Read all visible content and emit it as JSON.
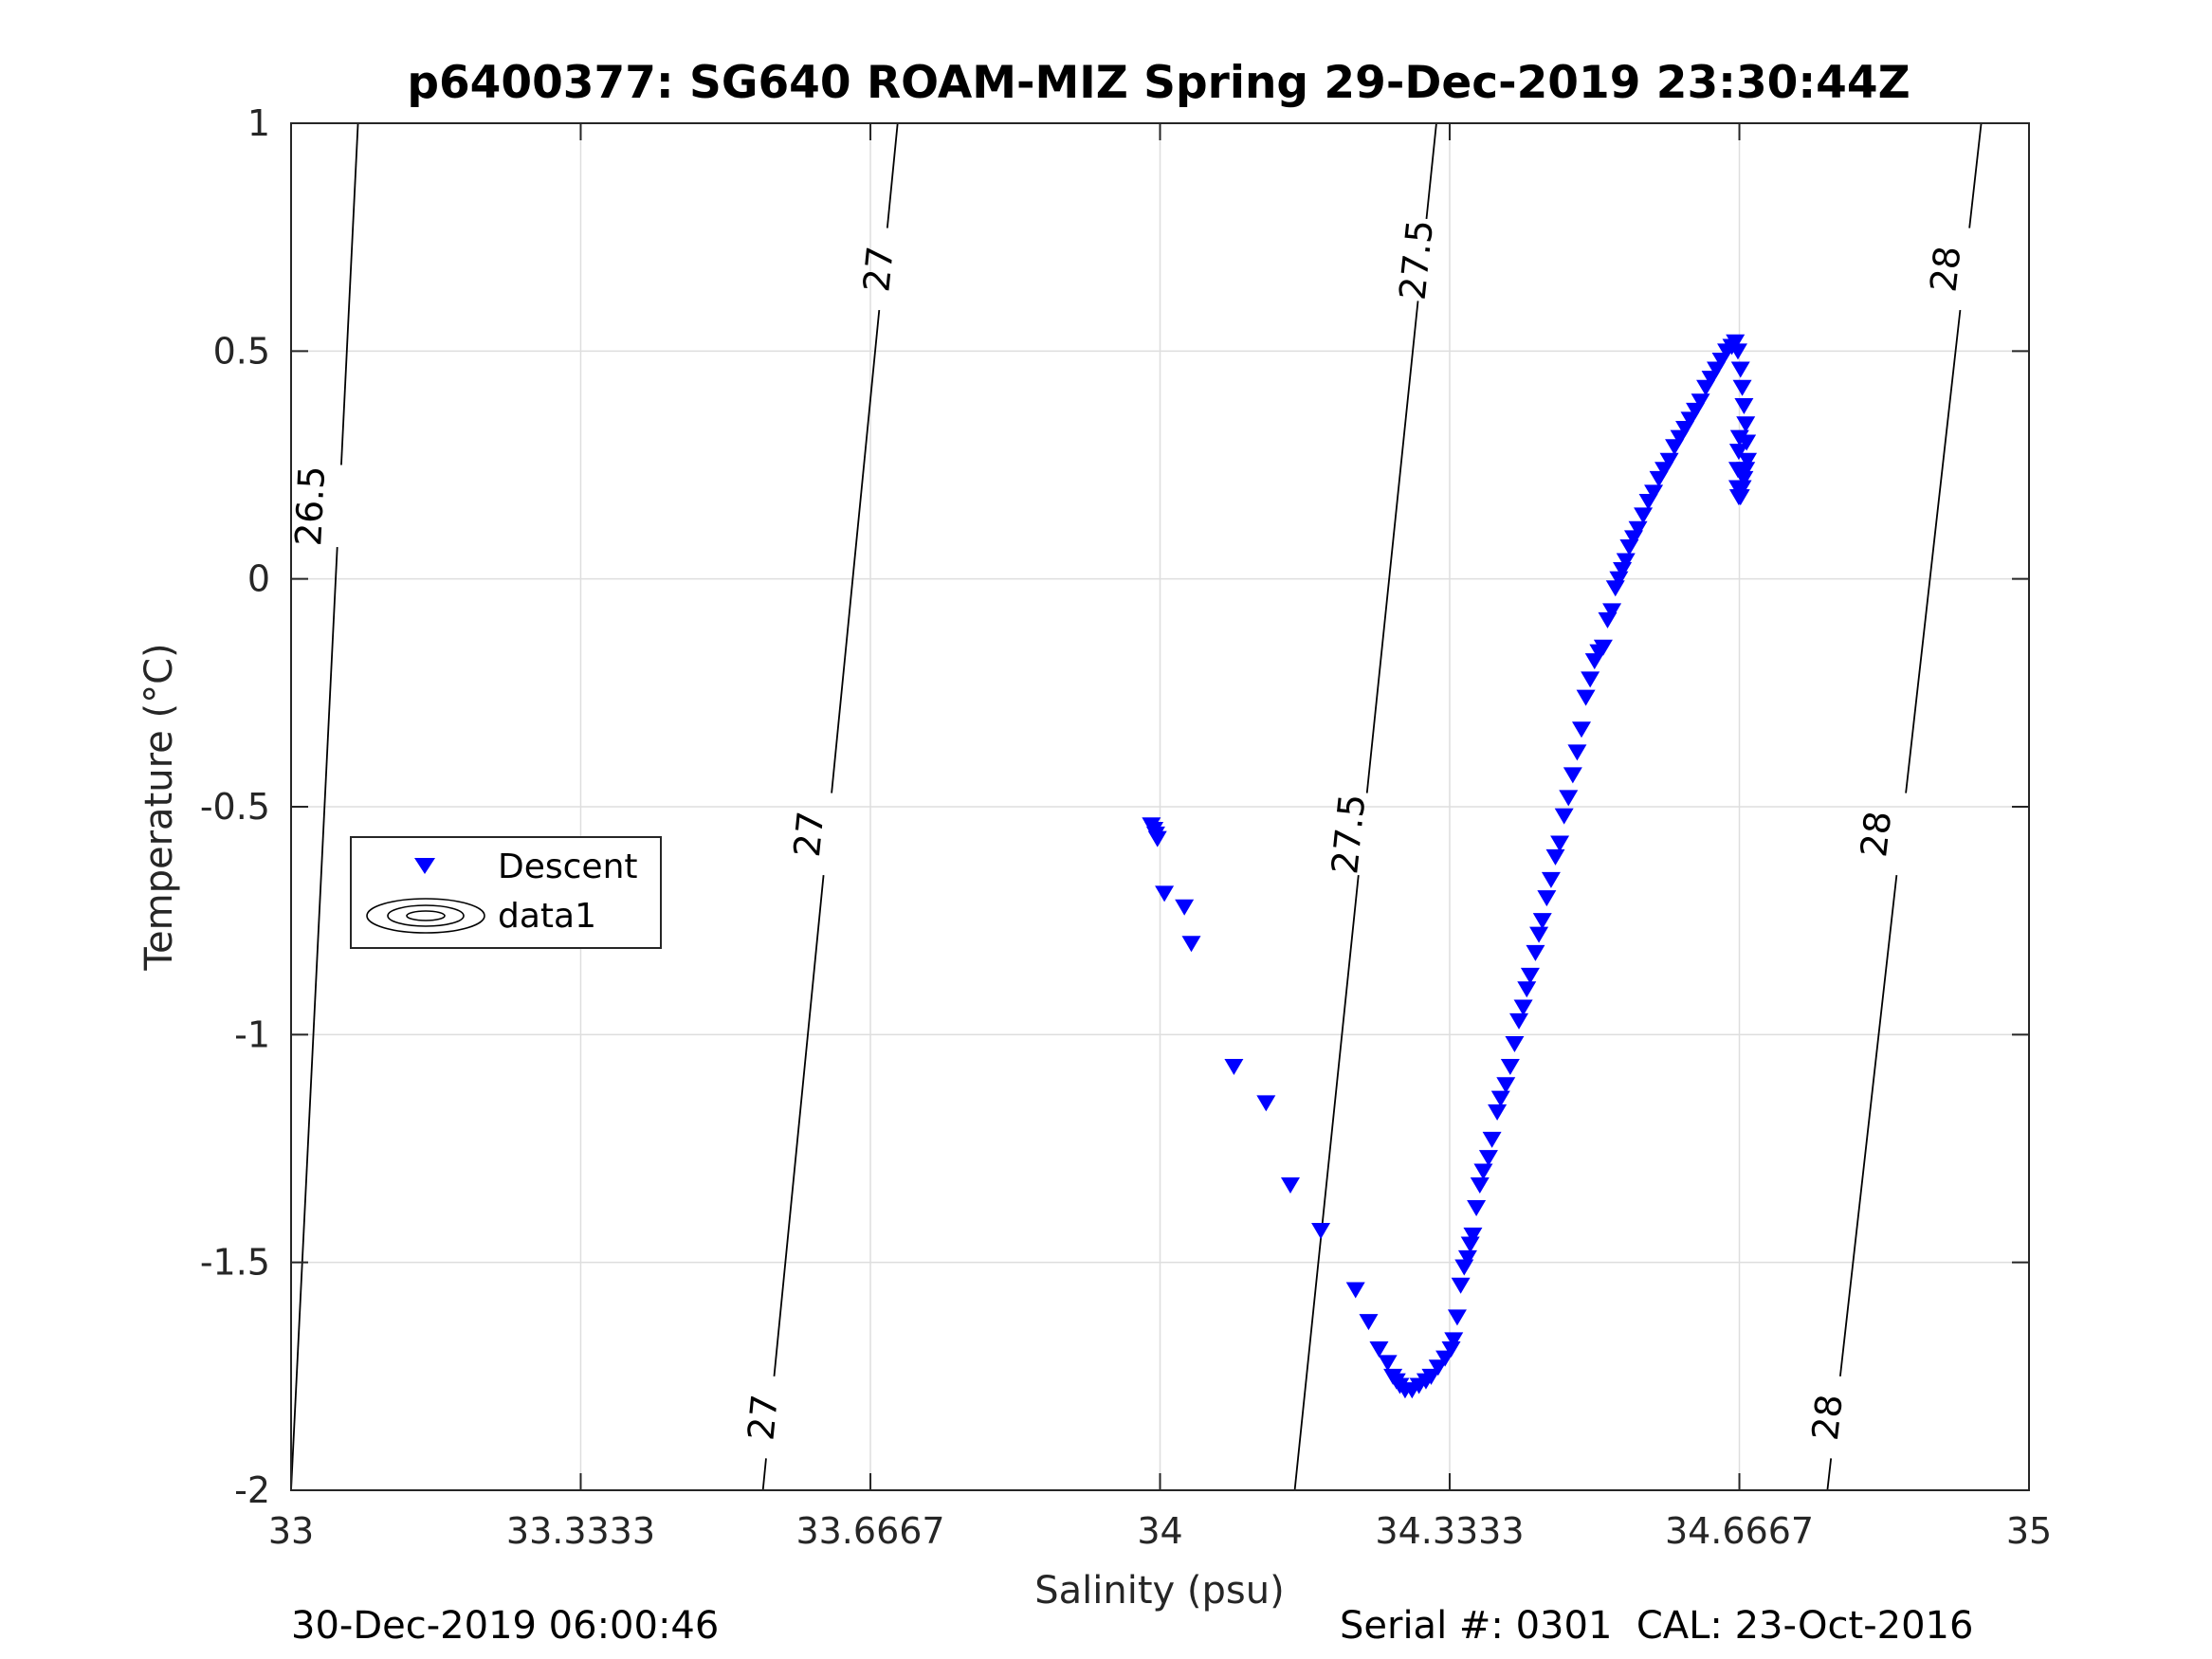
{
  "chart_data": {
    "type": "scatter",
    "title": "p6400377: SG640 ROAM-MIZ Spring 29-Dec-2019 23:30:44Z",
    "xlabel": "Salinity (psu)",
    "ylabel": "Temperature (°C)",
    "xlim": [
      33,
      35
    ],
    "ylim": [
      -2,
      1
    ],
    "xticks": [
      33,
      33.3333,
      33.6667,
      34,
      34.3333,
      34.6667,
      35
    ],
    "xtick_labels": [
      "33",
      "33.3333",
      "33.6667",
      "34",
      "34.3333",
      "34.6667",
      "35"
    ],
    "yticks": [
      -2,
      -1.5,
      -1,
      -0.5,
      0,
      0.5,
      1
    ],
    "ytick_labels": [
      "-2",
      "-1.5",
      "-1",
      "-0.5",
      "0",
      "0.5",
      "1"
    ],
    "grid": true,
    "legend_position": "center-left",
    "legend": [
      "Descent",
      "data1"
    ],
    "series": [
      {
        "name": "Descent",
        "marker": "triangle-down",
        "color": "#0000ff",
        "x": [
          33.99,
          33.993,
          33.995,
          33.997,
          34.005,
          34.028,
          34.036,
          34.085,
          34.122,
          34.15,
          34.185,
          34.225,
          34.24,
          34.252,
          34.262,
          34.268,
          34.272,
          34.276,
          34.282,
          34.29,
          34.298,
          34.306,
          34.312,
          34.32,
          34.328,
          34.335,
          34.338,
          34.342,
          34.346,
          34.35,
          34.354,
          34.357,
          34.36,
          34.364,
          34.368,
          34.372,
          34.378,
          34.382,
          34.388,
          34.392,
          34.398,
          34.403,
          34.408,
          34.413,
          34.418,
          34.422,
          34.426,
          34.432,
          34.436,
          34.44,
          34.445,
          34.45,
          34.455,
          34.46,
          34.465,
          34.47,
          34.475,
          34.48,
          34.485,
          34.49,
          34.495,
          34.5,
          34.505,
          34.51,
          34.515,
          34.52,
          34.524,
          34.528,
          34.532,
          34.536,
          34.54,
          34.545,
          34.55,
          34.556,
          34.562,
          34.568,
          34.574,
          34.58,
          34.586,
          34.592,
          34.598,
          34.604,
          34.61,
          34.616,
          34.622,
          34.628,
          34.634,
          34.64,
          34.646,
          34.652,
          34.658,
          34.662,
          34.665,
          34.668,
          34.67,
          34.672,
          34.674,
          34.675,
          34.676,
          34.674,
          34.672,
          34.67,
          34.668,
          34.666,
          34.665,
          34.665,
          34.666,
          34.667
        ],
        "y": [
          -0.54,
          -0.55,
          -0.56,
          -0.57,
          -0.69,
          -0.72,
          -0.8,
          -1.07,
          -1.15,
          -1.33,
          -1.43,
          -1.56,
          -1.63,
          -1.69,
          -1.72,
          -1.75,
          -1.76,
          -1.77,
          -1.78,
          -1.78,
          -1.77,
          -1.76,
          -1.75,
          -1.73,
          -1.71,
          -1.69,
          -1.67,
          -1.62,
          -1.55,
          -1.51,
          -1.49,
          -1.46,
          -1.44,
          -1.38,
          -1.33,
          -1.3,
          -1.27,
          -1.23,
          -1.17,
          -1.14,
          -1.11,
          -1.07,
          -1.02,
          -0.97,
          -0.94,
          -0.9,
          -0.87,
          -0.82,
          -0.78,
          -0.75,
          -0.7,
          -0.66,
          -0.61,
          -0.58,
          -0.52,
          -0.48,
          -0.43,
          -0.38,
          -0.33,
          -0.26,
          -0.22,
          -0.18,
          -0.16,
          -0.15,
          -0.09,
          -0.07,
          -0.02,
          0.0,
          0.02,
          0.04,
          0.07,
          0.09,
          0.11,
          0.14,
          0.17,
          0.19,
          0.22,
          0.24,
          0.26,
          0.29,
          0.31,
          0.33,
          0.35,
          0.37,
          0.39,
          0.42,
          0.44,
          0.46,
          0.48,
          0.5,
          0.51,
          0.52,
          0.5,
          0.46,
          0.42,
          0.38,
          0.34,
          0.3,
          0.26,
          0.24,
          0.22,
          0.2,
          0.18,
          0.18,
          0.2,
          0.24,
          0.28,
          0.31
        ]
      },
      {
        "name": "data1",
        "type": "contour",
        "color": "#000000",
        "isopycnals": [
          {
            "level": "26.5",
            "x_bottom": 33.0,
            "x_top": 33.077,
            "label_positions": [
              {
                "x": 33.022,
                "y": 0.16
              }
            ]
          },
          {
            "level": "27",
            "x_bottom": 33.543,
            "x_top": 33.698,
            "label_positions": [
              {
                "x": 33.543,
                "y": -1.84
              },
              {
                "x": 33.596,
                "y": -0.56
              },
              {
                "x": 33.676,
                "y": 0.68
              }
            ]
          },
          {
            "level": "27.5",
            "x_bottom": 34.155,
            "x_top": 34.318,
            "label_positions": [
              {
                "x": 34.217,
                "y": -0.56
              },
              {
                "x": 34.295,
                "y": 0.7
              }
            ]
          },
          {
            "level": "28",
            "x_bottom": 34.768,
            "x_top": 34.945,
            "label_positions": [
              {
                "x": 34.768,
                "y": -1.84
              },
              {
                "x": 34.824,
                "y": -0.56
              },
              {
                "x": 34.904,
                "y": 0.68
              }
            ]
          }
        ]
      }
    ]
  },
  "footer": {
    "left_timestamp": "30-Dec-2019 06:00:46",
    "right_info": "Serial #: 0301  CAL: 23-Oct-2016"
  }
}
